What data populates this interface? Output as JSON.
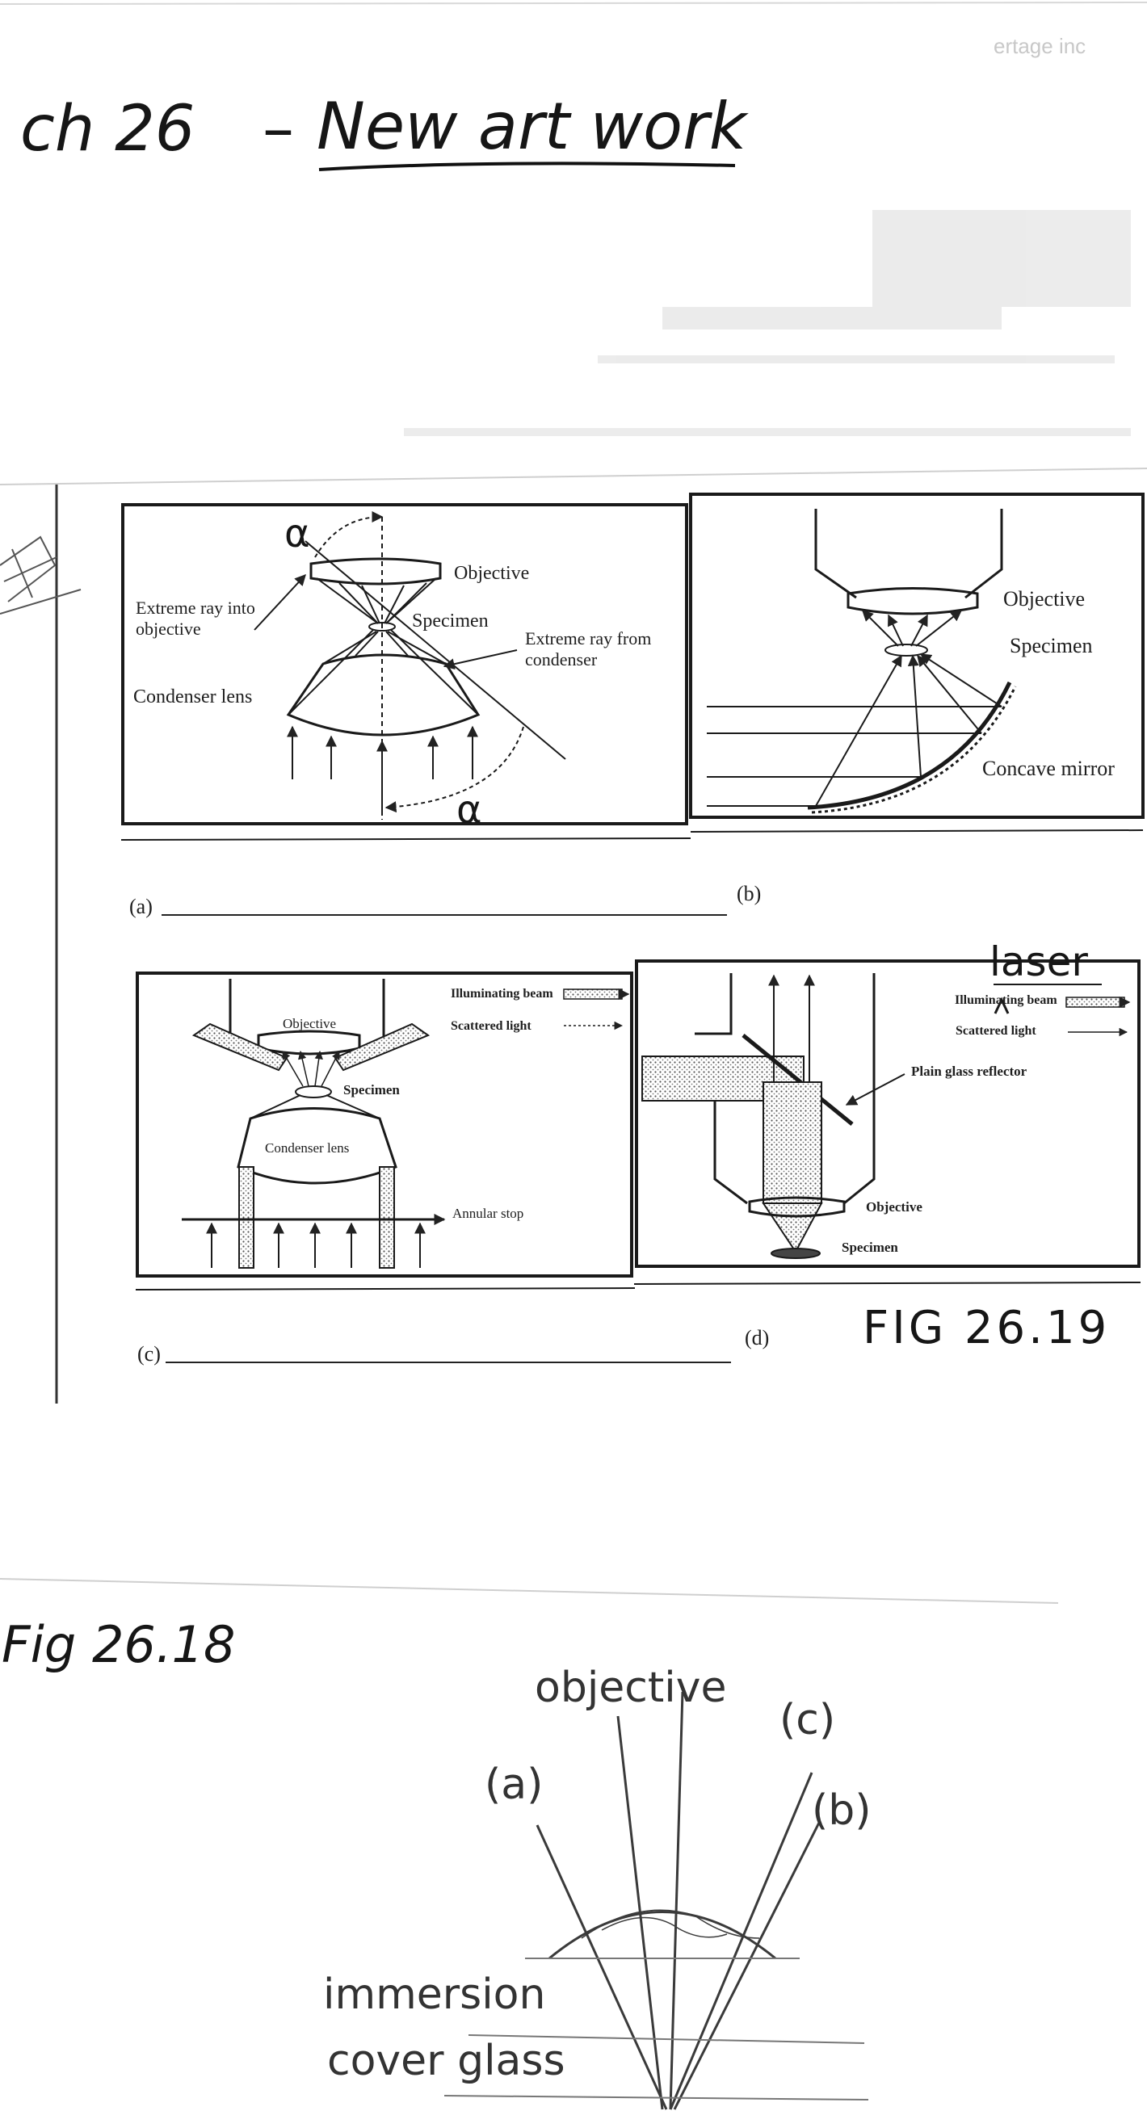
{
  "header": {
    "title_prefix": "ch 26",
    "title_dash": "–",
    "title_main": "New art work"
  },
  "ghost_text": {
    "top_right": "ertage inc"
  },
  "figure_26_19": {
    "handwritten_label": "FIG 26.19",
    "panel_a": {
      "caption": "(a)",
      "alpha_top": "α",
      "alpha_bottom": "α",
      "objective": "Objective",
      "extreme_ray_into": "Extreme ray into objective",
      "specimen": "Specimen",
      "extreme_ray_from": "Extreme ray from condenser",
      "condenser_lens": "Condenser lens"
    },
    "panel_b": {
      "caption": "(b)",
      "objective": "Objective",
      "specimen": "Specimen",
      "concave_mirror": "Concave mirror"
    },
    "panel_c": {
      "caption": "(c)",
      "objective": "Objective",
      "specimen": "Specimen",
      "condenser_lens": "Condenser lens",
      "annular_stop": "Annular stop",
      "illuminating_beam": "Illuminating beam",
      "scattered_light": "Scattered light"
    },
    "panel_d": {
      "caption": "(d)",
      "laser_note": "laser",
      "illuminating_beam": "Illuminating beam",
      "scattered_light": "Scattered light",
      "plain_glass_reflector": "Plain glass reflector",
      "objective": "Objective",
      "specimen": "Specimen"
    }
  },
  "figure_26_18": {
    "handwritten_label": "Fig 26.18",
    "objective": "objective",
    "ray_a": "(a)",
    "ray_b": "(b)",
    "ray_c": "(c)",
    "immersion": "immersion",
    "cover_glass": "cover glass"
  }
}
